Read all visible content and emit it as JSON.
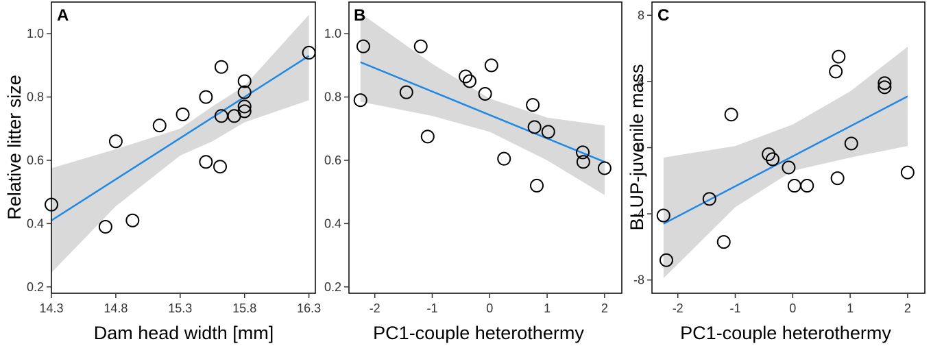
{
  "figure": {
    "description_panels": [
      "A",
      "B",
      "C"
    ]
  },
  "chart_data": [
    {
      "type": "scatter",
      "panel": "A",
      "xlabel": "Dam head width [mm]",
      "ylabel": "Relative litter size",
      "xlim": [
        14.3,
        16.35
      ],
      "ylim": [
        0.18,
        1.1
      ],
      "xticks": [
        14.3,
        14.8,
        15.3,
        15.8,
        16.3
      ],
      "xtick_labels": [
        "14.3",
        "14.8",
        "15.3",
        "15.8",
        "16.3"
      ],
      "yticks": [
        0.2,
        0.4,
        0.6,
        0.8,
        1.0
      ],
      "ytick_labels": [
        "0.2",
        "0.4",
        "0.6",
        "0.8",
        "1.0"
      ],
      "points": [
        [
          14.3,
          0.46
        ],
        [
          14.72,
          0.39
        ],
        [
          14.8,
          0.66
        ],
        [
          14.93,
          0.41
        ],
        [
          15.14,
          0.71
        ],
        [
          15.32,
          0.745
        ],
        [
          15.5,
          0.8
        ],
        [
          15.5,
          0.595
        ],
        [
          15.62,
          0.895
        ],
        [
          15.62,
          0.74
        ],
        [
          15.61,
          0.58
        ],
        [
          15.72,
          0.74
        ],
        [
          15.8,
          0.85
        ],
        [
          15.8,
          0.815
        ],
        [
          15.8,
          0.77
        ],
        [
          15.8,
          0.755
        ],
        [
          16.3,
          0.94
        ]
      ],
      "fit_line": {
        "x": [
          14.3,
          16.3
        ],
        "y": [
          0.41,
          0.93
        ]
      },
      "confidence_band": {
        "x": [
          14.3,
          14.8,
          15.3,
          15.55,
          15.8,
          16.3
        ],
        "lower": [
          0.245,
          0.455,
          0.615,
          0.66,
          0.72,
          0.79
        ],
        "upper": [
          0.575,
          0.635,
          0.7,
          0.77,
          0.835,
          1.06
        ]
      }
    },
    {
      "type": "scatter",
      "panel": "B",
      "xlabel": "PC1-couple heterothermy",
      "ylabel": "",
      "xlim": [
        -2.45,
        2.3
      ],
      "ylim": [
        0.18,
        1.1
      ],
      "xticks": [
        -2,
        -1,
        0,
        1,
        2
      ],
      "xtick_labels": [
        "-2",
        "-1",
        "0",
        "1",
        "2"
      ],
      "yticks": [
        0.2,
        0.4,
        0.6,
        0.8,
        1.0
      ],
      "ytick_labels": [
        "0.2",
        "0.4",
        "0.6",
        "0.8",
        "1.0"
      ],
      "points": [
        [
          -2.2,
          0.96
        ],
        [
          -2.25,
          0.79
        ],
        [
          -1.2,
          0.96
        ],
        [
          -1.45,
          0.815
        ],
        [
          -1.08,
          0.675
        ],
        [
          -0.42,
          0.865
        ],
        [
          -0.35,
          0.85
        ],
        [
          -0.08,
          0.81
        ],
        [
          0.03,
          0.9
        ],
        [
          0.25,
          0.605
        ],
        [
          0.75,
          0.775
        ],
        [
          0.78,
          0.705
        ],
        [
          0.82,
          0.52
        ],
        [
          1.02,
          0.69
        ],
        [
          1.62,
          0.625
        ],
        [
          1.63,
          0.595
        ],
        [
          2.0,
          0.575
        ]
      ],
      "fit_line": {
        "x": [
          -2.25,
          2.0
        ],
        "y": [
          0.91,
          0.595
        ]
      },
      "confidence_band": {
        "x": [
          -2.25,
          -1.0,
          0.0,
          1.0,
          2.0
        ],
        "lower": [
          0.785,
          0.74,
          0.69,
          0.6,
          0.49
        ],
        "upper": [
          1.065,
          0.905,
          0.795,
          0.735,
          0.71
        ]
      }
    },
    {
      "type": "scatter",
      "panel": "C",
      "xlabel": "PC1-couple heterothermy",
      "ylabel": "BLUP-juvenile mass",
      "xlim": [
        -2.45,
        2.3
      ],
      "ylim": [
        -8.8,
        8.8
      ],
      "xticks": [
        -2,
        -1,
        0,
        1,
        2
      ],
      "xtick_labels": [
        "-2",
        "-1",
        "0",
        "1",
        "2"
      ],
      "yticks": [
        -8,
        -4,
        0,
        4,
        8
      ],
      "ytick_labels": [
        "-8",
        "-4",
        "0",
        "4",
        "8"
      ],
      "points": [
        [
          -2.25,
          -4.1
        ],
        [
          -2.2,
          -6.8
        ],
        [
          -1.45,
          -3.1
        ],
        [
          -1.2,
          -5.7
        ],
        [
          -1.07,
          2.0
        ],
        [
          -0.42,
          -0.4
        ],
        [
          -0.35,
          -0.7
        ],
        [
          -0.07,
          -1.2
        ],
        [
          0.03,
          -2.3
        ],
        [
          0.25,
          -2.3
        ],
        [
          0.75,
          4.6
        ],
        [
          0.8,
          5.5
        ],
        [
          0.78,
          -1.85
        ],
        [
          1.02,
          0.25
        ],
        [
          1.6,
          3.9
        ],
        [
          1.6,
          3.65
        ],
        [
          2.0,
          -1.5
        ]
      ],
      "fit_line": {
        "x": [
          -2.25,
          2.0
        ],
        "y": [
          -4.6,
          3.1
        ]
      },
      "confidence_band": {
        "x": [
          -2.25,
          -1.0,
          0.0,
          1.0,
          2.0
        ],
        "lower": [
          -7.9,
          -3.6,
          -1.4,
          -0.6,
          0.1
        ],
        "upper": [
          -0.6,
          0.1,
          1.4,
          3.4,
          6.1
        ]
      }
    }
  ]
}
